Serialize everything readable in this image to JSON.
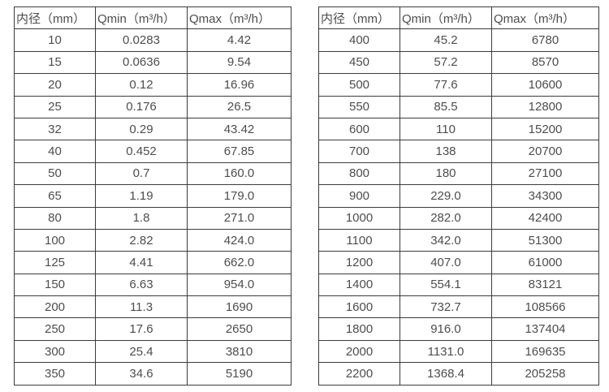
{
  "page": {
    "background_color": "#ffffff",
    "text_color": "#4d4d4d",
    "border_color": "#3b3b3b"
  },
  "tables": [
    {
      "name": "flow-spec-small-diameters",
      "headers": [
        "内径（mm）",
        "Qmin（m³/h）",
        "Qmax（m³/h）"
      ],
      "rows": [
        [
          "10",
          "0.0283",
          "4.42"
        ],
        [
          "15",
          "0.0636",
          "9.54"
        ],
        [
          "20",
          "0.12",
          "16.96"
        ],
        [
          "25",
          "0.176",
          "26.5"
        ],
        [
          "32",
          "0.29",
          "43.42"
        ],
        [
          "40",
          "0.452",
          "67.85"
        ],
        [
          "50",
          "0.7",
          "160.0"
        ],
        [
          "65",
          "1.19",
          "179.0"
        ],
        [
          "80",
          "1.8",
          "271.0"
        ],
        [
          "100",
          "2.82",
          "424.0"
        ],
        [
          "125",
          "4.41",
          "662.0"
        ],
        [
          "150",
          "6.63",
          "954.0"
        ],
        [
          "200",
          "11.3",
          "1690"
        ],
        [
          "250",
          "17.6",
          "2650"
        ],
        [
          "300",
          "25.4",
          "3810"
        ],
        [
          "350",
          "34.6",
          "5190"
        ]
      ]
    },
    {
      "name": "flow-spec-large-diameters",
      "headers": [
        "内径（mm）",
        "Qmin（m³/h）",
        "Qmax（m³/h）"
      ],
      "rows": [
        [
          "400",
          "45.2",
          "6780"
        ],
        [
          "450",
          "57.2",
          "8570"
        ],
        [
          "500",
          "77.6",
          "10600"
        ],
        [
          "550",
          "85.5",
          "12800"
        ],
        [
          "600",
          "110",
          "15200"
        ],
        [
          "700",
          "138",
          "20700"
        ],
        [
          "800",
          "180",
          "27100"
        ],
        [
          "900",
          "229.0",
          "34300"
        ],
        [
          "1000",
          "282.0",
          "42400"
        ],
        [
          "1100",
          "342.0",
          "51300"
        ],
        [
          "1200",
          "407.0",
          "61000"
        ],
        [
          "1400",
          "554.1",
          "83121"
        ],
        [
          "1600",
          "732.7",
          "108566"
        ],
        [
          "1800",
          "916.0",
          "137404"
        ],
        [
          "2000",
          "1131.0",
          "169635"
        ],
        [
          "2200",
          "1368.4",
          "205258"
        ]
      ]
    }
  ]
}
